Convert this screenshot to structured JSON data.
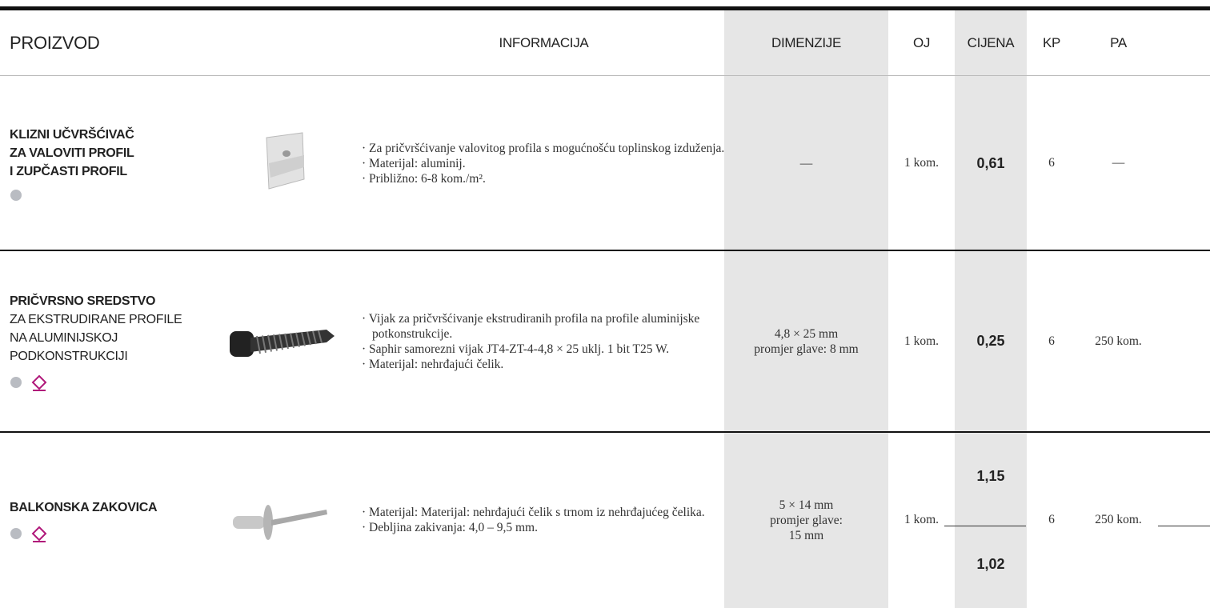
{
  "header": [
    "PROIZVOD",
    "INFORMACIJA",
    "DIMENZIJE",
    "OJ",
    "CIJENA",
    "KP",
    "PA"
  ],
  "rows": [
    {
      "name_bold": [
        "KLIZNI UČVRŠĆIVAČ",
        "ZA VALOVITI PROFIL",
        "I ZUPČASTI PROFIL"
      ],
      "name_regular": [],
      "info": [
        "· Za pričvršćivanje valovitog profila s mogućnošću toplinskog izduženja.",
        "· Materijal: aluminij.",
        "· Približno: 6-8 kom./m²."
      ],
      "dimensions": [
        "—"
      ],
      "unit": "1 kom.",
      "price": [
        "0,61"
      ],
      "kp": "6",
      "pa": "—"
    },
    {
      "name_bold": [
        "PRIČVRSNO SREDSTVO"
      ],
      "name_regular": [
        "ZA EKSTRUDIRANE PROFILE",
        "NA ALUMINIJSKOJ",
        "PODKONSTRUKCIJI"
      ],
      "info": [
        "· Vijak za pričvršćivanje ekstrudiranih profila na profile aluminijske potkonstrukcije.",
        "· Saphir samorezni vijak JT4-ZT-4-4,8 × 25 uklj. 1 bit T25 W.",
        "· Materijal: nehrđajući čelik."
      ],
      "dimensions": [
        "4,8 × 25 mm",
        "promjer glave: 8 mm"
      ],
      "unit": "1 kom.",
      "price": [
        "0,25"
      ],
      "kp": "6",
      "pa": "250 kom."
    },
    {
      "name_bold": [
        "BALKONSKA ZAKOVICA"
      ],
      "name_regular": [],
      "info": [
        "· Materijal: Materijal: nehrđajući čelik s trnom iz nehrđajućeg čelika.",
        "· Debljina zakivanja: 4,0 – 9,5 mm."
      ],
      "dimensions": [
        "5 × 14 mm",
        "promjer glave:",
        "15 mm"
      ],
      "unit": "1 kom.",
      "price": [
        "1,15",
        "1,02"
      ],
      "kp": "6",
      "pa": "250 kom."
    }
  ]
}
